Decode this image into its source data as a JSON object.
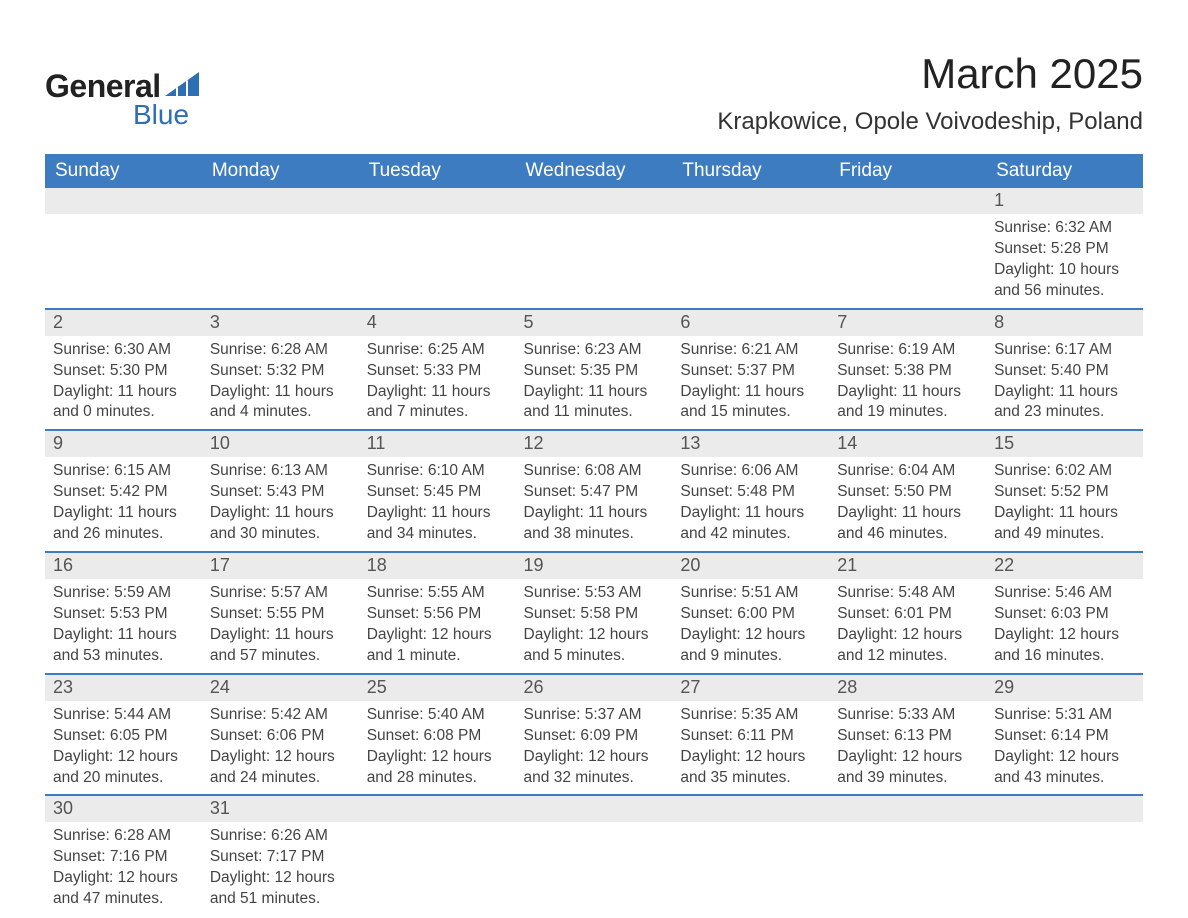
{
  "logo": {
    "text1": "General",
    "text2": "Blue",
    "shape_color": "#2d6fb5"
  },
  "title": "March 2025",
  "location": "Krapkowice, Opole Voivodeship, Poland",
  "colors": {
    "header_bg": "#3d7cc0",
    "header_text": "#ffffff",
    "daynum_bg": "#ebebeb",
    "row_border": "#3d7cc0",
    "body_text": "#444444"
  },
  "weekdays": [
    "Sunday",
    "Monday",
    "Tuesday",
    "Wednesday",
    "Thursday",
    "Friday",
    "Saturday"
  ],
  "weeks": [
    [
      null,
      null,
      null,
      null,
      null,
      null,
      {
        "n": "1",
        "sunrise": "Sunrise: 6:32 AM",
        "sunset": "Sunset: 5:28 PM",
        "daylight": "Daylight: 10 hours and 56 minutes."
      }
    ],
    [
      {
        "n": "2",
        "sunrise": "Sunrise: 6:30 AM",
        "sunset": "Sunset: 5:30 PM",
        "daylight": "Daylight: 11 hours and 0 minutes."
      },
      {
        "n": "3",
        "sunrise": "Sunrise: 6:28 AM",
        "sunset": "Sunset: 5:32 PM",
        "daylight": "Daylight: 11 hours and 4 minutes."
      },
      {
        "n": "4",
        "sunrise": "Sunrise: 6:25 AM",
        "sunset": "Sunset: 5:33 PM",
        "daylight": "Daylight: 11 hours and 7 minutes."
      },
      {
        "n": "5",
        "sunrise": "Sunrise: 6:23 AM",
        "sunset": "Sunset: 5:35 PM",
        "daylight": "Daylight: 11 hours and 11 minutes."
      },
      {
        "n": "6",
        "sunrise": "Sunrise: 6:21 AM",
        "sunset": "Sunset: 5:37 PM",
        "daylight": "Daylight: 11 hours and 15 minutes."
      },
      {
        "n": "7",
        "sunrise": "Sunrise: 6:19 AM",
        "sunset": "Sunset: 5:38 PM",
        "daylight": "Daylight: 11 hours and 19 minutes."
      },
      {
        "n": "8",
        "sunrise": "Sunrise: 6:17 AM",
        "sunset": "Sunset: 5:40 PM",
        "daylight": "Daylight: 11 hours and 23 minutes."
      }
    ],
    [
      {
        "n": "9",
        "sunrise": "Sunrise: 6:15 AM",
        "sunset": "Sunset: 5:42 PM",
        "daylight": "Daylight: 11 hours and 26 minutes."
      },
      {
        "n": "10",
        "sunrise": "Sunrise: 6:13 AM",
        "sunset": "Sunset: 5:43 PM",
        "daylight": "Daylight: 11 hours and 30 minutes."
      },
      {
        "n": "11",
        "sunrise": "Sunrise: 6:10 AM",
        "sunset": "Sunset: 5:45 PM",
        "daylight": "Daylight: 11 hours and 34 minutes."
      },
      {
        "n": "12",
        "sunrise": "Sunrise: 6:08 AM",
        "sunset": "Sunset: 5:47 PM",
        "daylight": "Daylight: 11 hours and 38 minutes."
      },
      {
        "n": "13",
        "sunrise": "Sunrise: 6:06 AM",
        "sunset": "Sunset: 5:48 PM",
        "daylight": "Daylight: 11 hours and 42 minutes."
      },
      {
        "n": "14",
        "sunrise": "Sunrise: 6:04 AM",
        "sunset": "Sunset: 5:50 PM",
        "daylight": "Daylight: 11 hours and 46 minutes."
      },
      {
        "n": "15",
        "sunrise": "Sunrise: 6:02 AM",
        "sunset": "Sunset: 5:52 PM",
        "daylight": "Daylight: 11 hours and 49 minutes."
      }
    ],
    [
      {
        "n": "16",
        "sunrise": "Sunrise: 5:59 AM",
        "sunset": "Sunset: 5:53 PM",
        "daylight": "Daylight: 11 hours and 53 minutes."
      },
      {
        "n": "17",
        "sunrise": "Sunrise: 5:57 AM",
        "sunset": "Sunset: 5:55 PM",
        "daylight": "Daylight: 11 hours and 57 minutes."
      },
      {
        "n": "18",
        "sunrise": "Sunrise: 5:55 AM",
        "sunset": "Sunset: 5:56 PM",
        "daylight": "Daylight: 12 hours and 1 minute."
      },
      {
        "n": "19",
        "sunrise": "Sunrise: 5:53 AM",
        "sunset": "Sunset: 5:58 PM",
        "daylight": "Daylight: 12 hours and 5 minutes."
      },
      {
        "n": "20",
        "sunrise": "Sunrise: 5:51 AM",
        "sunset": "Sunset: 6:00 PM",
        "daylight": "Daylight: 12 hours and 9 minutes."
      },
      {
        "n": "21",
        "sunrise": "Sunrise: 5:48 AM",
        "sunset": "Sunset: 6:01 PM",
        "daylight": "Daylight: 12 hours and 12 minutes."
      },
      {
        "n": "22",
        "sunrise": "Sunrise: 5:46 AM",
        "sunset": "Sunset: 6:03 PM",
        "daylight": "Daylight: 12 hours and 16 minutes."
      }
    ],
    [
      {
        "n": "23",
        "sunrise": "Sunrise: 5:44 AM",
        "sunset": "Sunset: 6:05 PM",
        "daylight": "Daylight: 12 hours and 20 minutes."
      },
      {
        "n": "24",
        "sunrise": "Sunrise: 5:42 AM",
        "sunset": "Sunset: 6:06 PM",
        "daylight": "Daylight: 12 hours and 24 minutes."
      },
      {
        "n": "25",
        "sunrise": "Sunrise: 5:40 AM",
        "sunset": "Sunset: 6:08 PM",
        "daylight": "Daylight: 12 hours and 28 minutes."
      },
      {
        "n": "26",
        "sunrise": "Sunrise: 5:37 AM",
        "sunset": "Sunset: 6:09 PM",
        "daylight": "Daylight: 12 hours and 32 minutes."
      },
      {
        "n": "27",
        "sunrise": "Sunrise: 5:35 AM",
        "sunset": "Sunset: 6:11 PM",
        "daylight": "Daylight: 12 hours and 35 minutes."
      },
      {
        "n": "28",
        "sunrise": "Sunrise: 5:33 AM",
        "sunset": "Sunset: 6:13 PM",
        "daylight": "Daylight: 12 hours and 39 minutes."
      },
      {
        "n": "29",
        "sunrise": "Sunrise: 5:31 AM",
        "sunset": "Sunset: 6:14 PM",
        "daylight": "Daylight: 12 hours and 43 minutes."
      }
    ],
    [
      {
        "n": "30",
        "sunrise": "Sunrise: 6:28 AM",
        "sunset": "Sunset: 7:16 PM",
        "daylight": "Daylight: 12 hours and 47 minutes."
      },
      {
        "n": "31",
        "sunrise": "Sunrise: 6:26 AM",
        "sunset": "Sunset: 7:17 PM",
        "daylight": "Daylight: 12 hours and 51 minutes."
      },
      null,
      null,
      null,
      null,
      null
    ]
  ]
}
